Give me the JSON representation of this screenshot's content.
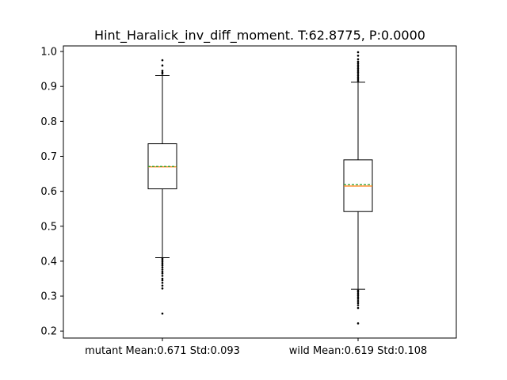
{
  "chart_data": {
    "type": "box",
    "title": "Hint_Haralick_inv_diff_moment. T:62.8775, P:0.0000",
    "xlabel": "",
    "ylabel": "",
    "ylim": [
      0.18,
      1.016
    ],
    "yticks": [
      "0.2",
      "0.3",
      "0.4",
      "0.5",
      "0.6",
      "0.7",
      "0.8",
      "0.9",
      "1.0"
    ],
    "ytick_values": [
      0.2,
      0.3,
      0.4,
      0.5,
      0.6,
      0.7,
      0.8,
      0.9,
      1.0
    ],
    "grid": false,
    "categories": [
      "mutant Mean:0.671 Std:0.093",
      "wild Mean:0.619 Std:0.108"
    ],
    "boxes": [
      {
        "label": "mutant Mean:0.671 Std:0.093",
        "whisker_low": 0.41,
        "q1": 0.607,
        "median": 0.67,
        "mean": 0.671,
        "q3": 0.736,
        "whisker_high": 0.931,
        "outliers_high": [
          0.936,
          0.94,
          0.945,
          0.96,
          0.975
        ],
        "outliers_low": [
          0.407,
          0.403,
          0.398,
          0.393,
          0.388,
          0.382,
          0.376,
          0.37,
          0.365,
          0.358,
          0.35,
          0.345,
          0.338,
          0.33,
          0.322,
          0.25
        ]
      },
      {
        "label": "wild Mean:0.619 Std:0.108",
        "whisker_low": 0.32,
        "q1": 0.542,
        "median": 0.615,
        "mean": 0.619,
        "q3": 0.69,
        "whisker_high": 0.912,
        "outliers_high": [
          0.916,
          0.921,
          0.926,
          0.931,
          0.936,
          0.941,
          0.946,
          0.951,
          0.956,
          0.961,
          0.966,
          0.971,
          0.978,
          0.988,
          0.998
        ],
        "outliers_low": [
          0.316,
          0.312,
          0.307,
          0.302,
          0.297,
          0.292,
          0.286,
          0.28,
          0.274,
          0.266,
          0.222
        ]
      }
    ],
    "colors": {
      "median": "#ff7f0e",
      "mean": "#2ca02c",
      "box": "#000000"
    }
  }
}
